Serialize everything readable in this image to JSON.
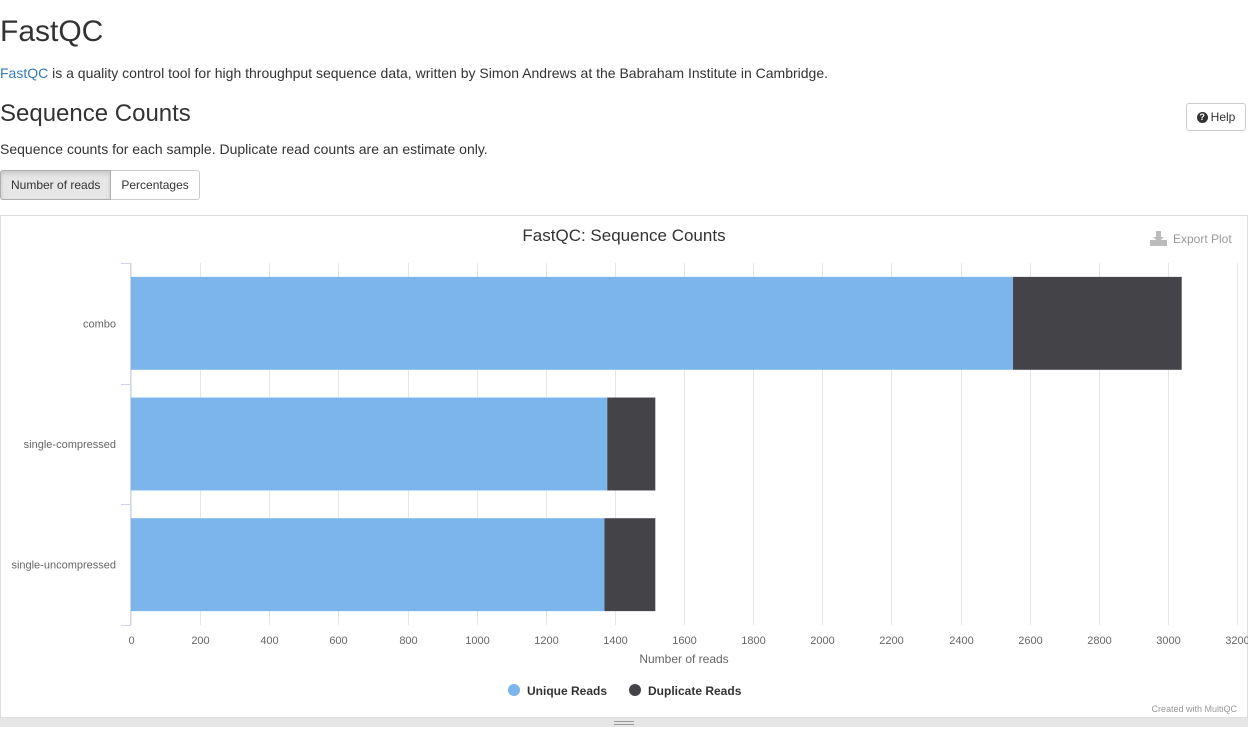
{
  "page": {
    "title": "FastQC",
    "intro_link": "FastQC",
    "intro_text": " is a quality control tool for high throughput sequence data, written by Simon Andrews at the Babraham Institute in Cambridge."
  },
  "section": {
    "title": "Sequence Counts",
    "description": "Sequence counts for each sample. Duplicate read counts are an estimate only.",
    "help_label": "Help",
    "toggle": [
      "Number of reads",
      "Percentages"
    ],
    "active_toggle": "Number of reads",
    "export_label": "Export Plot"
  },
  "colors": {
    "unique": "#7cb5ec",
    "duplicate": "#434348",
    "link": "#337ab7"
  },
  "icons": {
    "help": "question-circle-icon",
    "export": "download-icon",
    "resize": "grip-icon"
  },
  "chart_data": {
    "type": "bar",
    "orientation": "horizontal",
    "stacked": true,
    "title": "FastQC: Sequence Counts",
    "xlabel": "Number of reads",
    "categories": [
      "combo",
      "single-compressed",
      "single-uncompressed"
    ],
    "series": [
      {
        "name": "Unique Reads",
        "values": [
          2552,
          1378,
          1370
        ]
      },
      {
        "name": "Duplicate Reads",
        "values": [
          488,
          139,
          147
        ]
      }
    ],
    "xlim": [
      0,
      3200
    ],
    "xticks": [
      "0",
      "200",
      "400",
      "600",
      "800",
      "1000",
      "1200",
      "1400",
      "1600",
      "1800",
      "2000",
      "2200",
      "2400",
      "2600",
      "2800",
      "3000",
      "3200"
    ],
    "grid": true,
    "legend": "bottom-center",
    "credit": "Created with MultiQC"
  }
}
